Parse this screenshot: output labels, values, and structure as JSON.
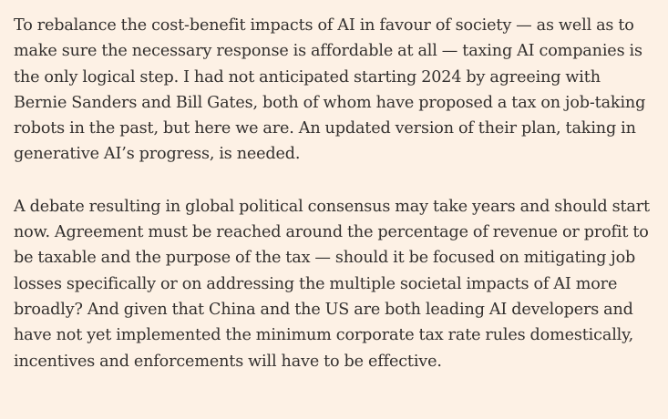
{
  "article": {
    "paragraphs": [
      {
        "lines": [
          "To rebalance the cost-benefit impacts of AI in favour of society — as well as to",
          "make sure the necessary response is affordable at all — taxing AI companies is",
          "the only logical step. I had not anticipated starting 2024 by agreeing with",
          "Bernie Sanders and Bill Gates, both of whom have proposed a tax on job-taking",
          "robots in the past, but here we are. An updated version of their plan, taking in",
          "generative AI’s progress, is needed."
        ]
      },
      {
        "lines": [
          "A debate resulting in global political consensus may take years and should start",
          "now. Agreement must be reached around the percentage of revenue or profit to",
          "be taxable and the purpose of the tax — should it be focused on mitigating job",
          "losses specifically or on addressing the multiple societal impacts of AI more",
          "broadly? And given that China and the US are both leading AI developers and",
          "have not yet implemented the minimum corporate tax rate rules domestically,",
          "incentives and enforcements will have to be effective."
        ]
      }
    ]
  },
  "colors": {
    "background": "#fdf1e5",
    "text": "#33302e"
  }
}
